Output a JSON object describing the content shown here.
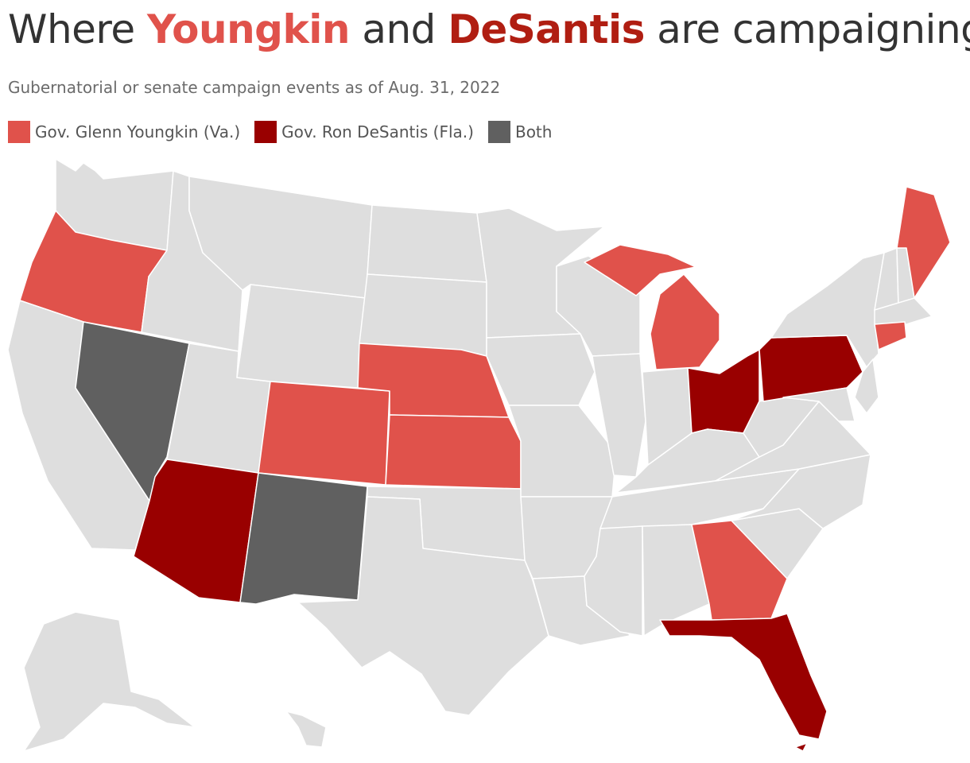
{
  "title": {
    "part1": "Where ",
    "highlight1": "Youngkin",
    "part2": " and ",
    "highlight2": "DeSantis",
    "part3": " are campaigning"
  },
  "subtitle": "Gubernatorial or senate campaign events as of Aug. 31, 2022",
  "legend": [
    {
      "label": "Gov. Glenn Youngkin (Va.)",
      "color": "#e0524b"
    },
    {
      "label": "Gov. Ron DeSantis (Fla.)",
      "color": "#990000"
    },
    {
      "label": "Both",
      "color": "#606060"
    }
  ],
  "colors": {
    "youngkin": "#e0524b",
    "desantis": "#990000",
    "both": "#606060",
    "none": "#dedede"
  },
  "states": {
    "youngkin": [
      "Oregon",
      "Colorado",
      "Nebraska",
      "Kansas",
      "Michigan",
      "Georgia",
      "Maine",
      "Connecticut"
    ],
    "desantis": [
      "Arizona",
      "Ohio",
      "Pennsylvania",
      "Florida"
    ],
    "both": [
      "Nevada",
      "New Mexico"
    ]
  }
}
